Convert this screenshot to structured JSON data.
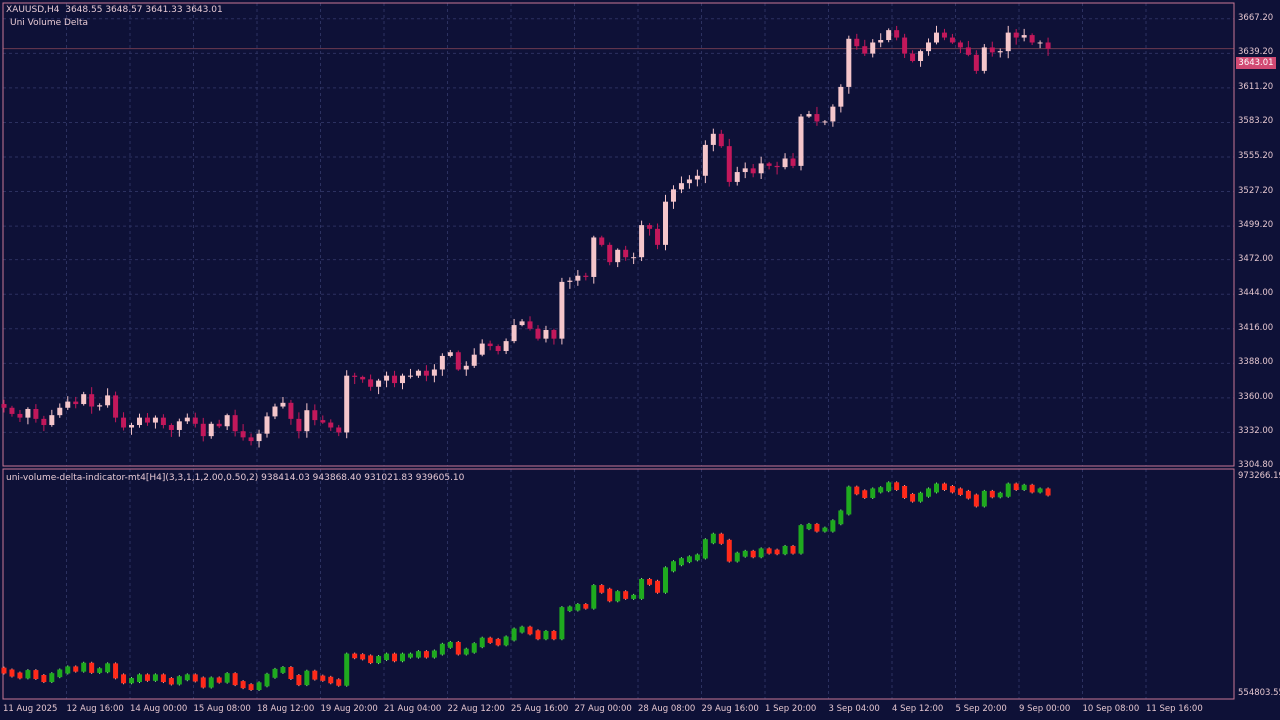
{
  "main_panel": {
    "symbol_info": "XAUUSD,H4",
    "ohlc_values": "3648.55 3648.57 3641.33 3643.01",
    "indicator_name": "Uni Volume Delta",
    "current_price": "3643.01",
    "price_axis_labels": [
      "3667.20",
      "3639.20",
      "3611.20",
      "3583.20",
      "3555.20",
      "3527.20",
      "3499.20",
      "3472.00",
      "3444.00",
      "3416.00",
      "3388.00",
      "3360.00",
      "3332.00",
      "3304.80"
    ]
  },
  "sub_panel": {
    "indicator_title": "uni-volume-delta-indicator-mt4[H4](3,3,1,1,2.00,0.50,2) 938414.03 943868.40 931021.83 939605.10",
    "axis_top_label": "973266.19",
    "axis_bottom_label": "554803.55"
  },
  "time_axis_labels": [
    "11 Aug 2025",
    "12 Aug 16:00",
    "14 Aug 00:00",
    "15 Aug 08:00",
    "18 Aug 12:00",
    "19 Aug 20:00",
    "21 Aug 04:00",
    "22 Aug 12:00",
    "25 Aug 16:00",
    "27 Aug 00:00",
    "28 Aug 08:00",
    "29 Aug 16:00",
    "1 Sep 20:00",
    "3 Sep 04:00",
    "4 Sep 12:00",
    "5 Sep 20:00",
    "9 Sep 00:00",
    "10 Sep 08:00",
    "11 Sep 16:00"
  ],
  "colors": {
    "background": "#0e1137",
    "frame": "#c87896",
    "grid": "#2c3160",
    "bull_candle": "#f5c6cb",
    "bear_candle": "#c2185b",
    "delta_up": "#1faa1f",
    "delta_down": "#ff2a1a",
    "text": "#e4c6cf"
  },
  "chart_data": [
    {
      "type": "candlestick",
      "title": "XAUUSD,H4",
      "ylim": [
        3304.8,
        3680.0
      ],
      "closes": [
        3352,
        3347,
        3344,
        3351,
        3343,
        3338,
        3346,
        3352,
        3357,
        3355,
        3363,
        3353,
        3354,
        3362,
        3344,
        3336,
        3338,
        3344,
        3340,
        3344,
        3338,
        3334,
        3341,
        3344,
        3339,
        3329,
        3339,
        3337,
        3346,
        3333,
        3328,
        3325,
        3331,
        3345,
        3353,
        3356,
        3343,
        3333,
        3350,
        3342,
        3340,
        3336,
        3332,
        3378,
        3377,
        3375,
        3369,
        3374,
        3378,
        3372,
        3378,
        3378,
        3382,
        3378,
        3383,
        3394,
        3397,
        3383,
        3386,
        3395,
        3404,
        3402,
        3398,
        3406,
        3419,
        3422,
        3416,
        3408,
        3415,
        3408,
        3454,
        3455,
        3459,
        3458,
        3490,
        3484,
        3470,
        3480,
        3474,
        3474,
        3500,
        3497,
        3484,
        3519,
        3529,
        3534,
        3537,
        3540,
        3565,
        3574,
        3564,
        3535,
        3543,
        3546,
        3542,
        3550,
        3548,
        3547,
        3554,
        3548,
        3588,
        3590,
        3584,
        3584,
        3596,
        3612,
        3651,
        3645,
        3639,
        3648,
        3650,
        3658,
        3652,
        3639,
        3633,
        3641,
        3648,
        3656,
        3652,
        3648,
        3644,
        3638,
        3625,
        3644,
        3640,
        3641,
        3656,
        3652,
        3654,
        3648,
        3648,
        3643
      ],
      "series": [
        {
          "name": "XAUUSD,H4",
          "values": [
            3352,
            3347,
            3344,
            3351,
            3343,
            3338,
            3346,
            3352,
            3357,
            3355,
            3363,
            3353,
            3354,
            3362,
            3344,
            3336,
            3338,
            3344,
            3340,
            3344,
            3338,
            3334,
            3341,
            3344,
            3339,
            3329,
            3339,
            3337,
            3346,
            3333,
            3328,
            3325,
            3331,
            3345,
            3353,
            3356,
            3343,
            3333,
            3350,
            3342,
            3340,
            3336,
            3332,
            3378,
            3377,
            3375,
            3369,
            3374,
            3378,
            3372,
            3378,
            3378,
            3382,
            3378,
            3383,
            3394,
            3397,
            3383,
            3386,
            3395,
            3404,
            3402,
            3398,
            3406,
            3419,
            3422,
            3416,
            3408,
            3415,
            3408,
            3454,
            3455,
            3459,
            3458,
            3490,
            3484,
            3470,
            3480,
            3474,
            3474,
            3500,
            3497,
            3484,
            3519,
            3529,
            3534,
            3537,
            3540,
            3565,
            3574,
            3564,
            3535,
            3543,
            3546,
            3542,
            3550,
            3548,
            3547,
            3554,
            3548,
            3588,
            3590,
            3584,
            3584,
            3596,
            3612,
            3651,
            3645,
            3639,
            3648,
            3650,
            3658,
            3652,
            3639,
            3633,
            3641,
            3648,
            3656,
            3652,
            3648,
            3644,
            3638,
            3625,
            3644,
            3640,
            3641,
            3656,
            3652,
            3654,
            3648,
            3648,
            3643
          ]
        }
      ],
      "last_ohlc": [
        3648.55,
        3648.57,
        3641.33,
        3643.01
      ]
    },
    {
      "type": "line",
      "title": "uni-volume-delta-indicator-mt4[H4](3,3,1,1,2.00,0.50,2)",
      "ylim": [
        554803.55,
        973266.19
      ],
      "last_values": [
        938414.03,
        943868.4,
        931021.83,
        939605.1
      ]
    }
  ]
}
